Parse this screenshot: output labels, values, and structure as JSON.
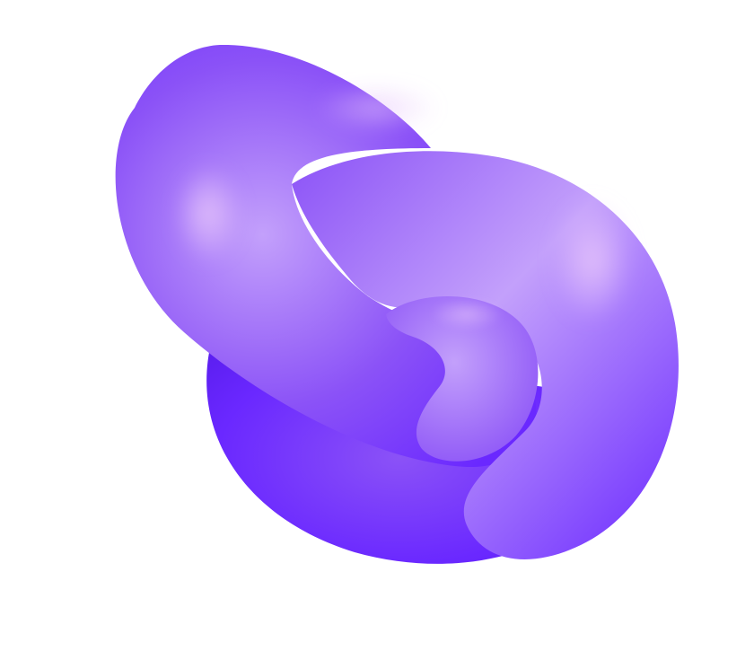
{
  "scene": {
    "subject": "knot-shape",
    "background_color": "#ffffff",
    "colors": {
      "deep_violet": "#6a28ff",
      "mid_violet": "#8b52f7",
      "light_lavender": "#c3a0fb",
      "highlight_pink": "#e8c7fb",
      "shadow_violet": "#5b1ef0"
    }
  }
}
